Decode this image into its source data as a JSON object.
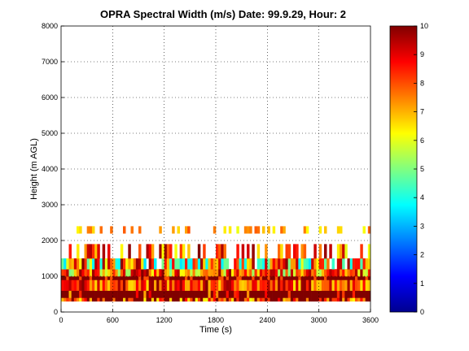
{
  "chart_data": {
    "type": "heatmap",
    "title": "OPRA Spectral Width (m/s)  Date: 99.9.29, Hour: 2",
    "xlabel": "Time (s)",
    "ylabel": "Height (m AGL)",
    "xlim": [
      0,
      3600
    ],
    "ylim": [
      0,
      8000
    ],
    "xticks": [
      "0",
      "600",
      "1200",
      "1800",
      "2400",
      "3000",
      "3600"
    ],
    "yticks": [
      "0",
      "1000",
      "2000",
      "3000",
      "4000",
      "5000",
      "6000",
      "7000",
      "8000"
    ],
    "grid": true,
    "colorbar": {
      "range": [
        0,
        10
      ],
      "ticks": [
        "0",
        "1",
        "2",
        "3",
        "4",
        "5",
        "6",
        "7",
        "8",
        "9",
        "10"
      ],
      "colormap": "jet"
    },
    "bands": [
      {
        "height_range": [
          300,
          400
        ],
        "spectral_width": "6-9, mixed with 10"
      },
      {
        "height_range": [
          400,
          600
        ],
        "spectral_width": "10 dominant"
      },
      {
        "height_range": [
          600,
          900
        ],
        "spectral_width": "7-10 mixed"
      },
      {
        "height_range": [
          900,
          1000
        ],
        "spectral_width": "10 dominant"
      },
      {
        "height_range": [
          1000,
          1200
        ],
        "spectral_width": "5-9 mixed"
      },
      {
        "height_range": [
          1200,
          1500
        ],
        "spectral_width": "4-8 mixed, cyan patches"
      },
      {
        "height_range": [
          1500,
          1900
        ],
        "spectral_width": "6-10 scattered"
      },
      {
        "height_range": [
          2200,
          2400
        ],
        "spectral_width": "6-8 scattered"
      }
    ],
    "colors": {
      "low": "#00008f",
      "mid": "#80ff80",
      "high": "#800000"
    }
  }
}
